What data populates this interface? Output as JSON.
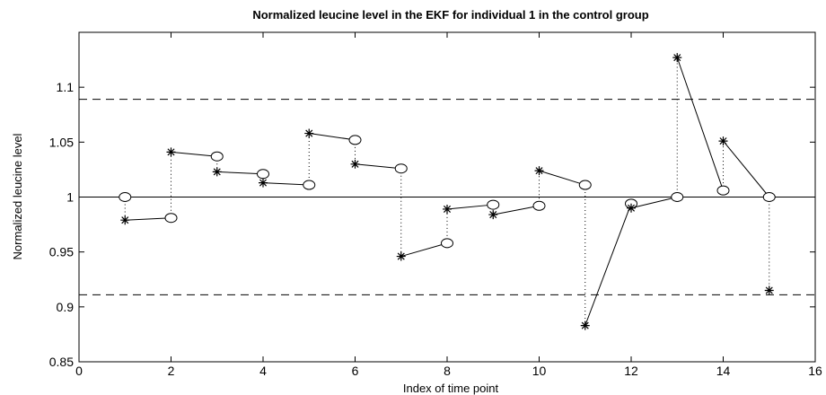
{
  "chart_data": {
    "type": "scatter",
    "title": "Normalized leucine level in the EKF for individual 1 in the control group",
    "xlabel": "Index of time point",
    "ylabel": "Normalized leucine level",
    "xlim": [
      0,
      16
    ],
    "ylim": [
      0.85,
      1.15
    ],
    "xticks": [
      0,
      2,
      4,
      6,
      8,
      10,
      12,
      14,
      16
    ],
    "yticks": [
      0.85,
      0.9,
      0.95,
      1,
      1.05,
      1.1
    ],
    "ytick_labels": [
      "0.85",
      "0.9",
      "0.95",
      "1",
      "1.05",
      "1.1"
    ],
    "grid": false,
    "reference_line": 1.0,
    "bounds": [
      0.911,
      1.089
    ],
    "circles": [
      {
        "x": 1,
        "y": 1.0
      },
      {
        "x": 2,
        "y": 0.981
      },
      {
        "x": 3,
        "y": 1.037
      },
      {
        "x": 4,
        "y": 1.021
      },
      {
        "x": 5,
        "y": 1.011
      },
      {
        "x": 6,
        "y": 1.052
      },
      {
        "x": 7,
        "y": 1.026
      },
      {
        "x": 8,
        "y": 0.958
      },
      {
        "x": 9,
        "y": 0.993
      },
      {
        "x": 10,
        "y": 0.992
      },
      {
        "x": 11,
        "y": 1.011
      },
      {
        "x": 12,
        "y": 0.994
      },
      {
        "x": 13,
        "y": 1.0
      },
      {
        "x": 14,
        "y": 1.006
      },
      {
        "x": 15,
        "y": 1.0
      }
    ],
    "stars": [
      {
        "x": 1,
        "y": 0.979
      },
      {
        "x": 2,
        "y": 1.041
      },
      {
        "x": 3,
        "y": 1.023
      },
      {
        "x": 4,
        "y": 1.013
      },
      {
        "x": 5,
        "y": 1.058
      },
      {
        "x": 6,
        "y": 1.03
      },
      {
        "x": 7,
        "y": 0.946
      },
      {
        "x": 8,
        "y": 0.989
      },
      {
        "x": 9,
        "y": 0.984
      },
      {
        "x": 10,
        "y": 1.024
      },
      {
        "x": 11,
        "y": 0.883
      },
      {
        "x": 12,
        "y": 0.99
      },
      {
        "x": 13,
        "y": 1.127
      },
      {
        "x": 14,
        "y": 1.051
      },
      {
        "x": 15,
        "y": 0.915
      }
    ]
  }
}
